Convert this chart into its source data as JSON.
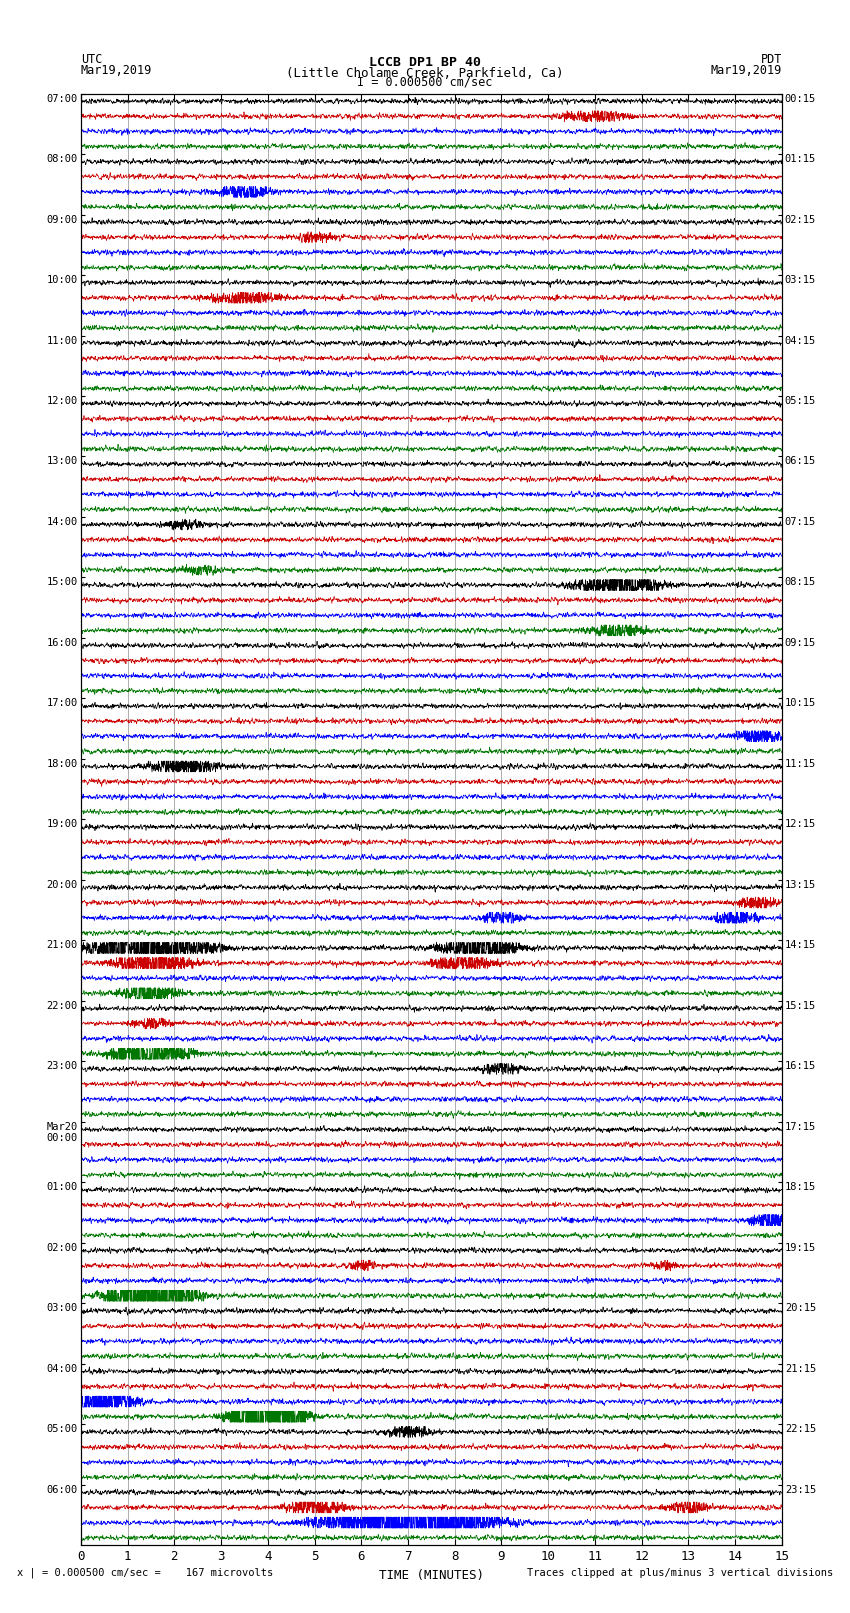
{
  "title_line1": "LCCB DP1 BP 40",
  "title_line2": "(Little Cholame Creek, Parkfield, Ca)",
  "scale_text": "I = 0.000500 cm/sec",
  "left_header": "UTC",
  "left_subheader": "Mar19,2019",
  "right_header": "PDT",
  "right_subheader": "Mar19,2019",
  "bottom_label": "TIME (MINUTES)",
  "bottom_note_left": "x | = 0.000500 cm/sec =    167 microvolts",
  "bottom_note_right": "Traces clipped at plus/minus 3 vertical divisions",
  "xlim": [
    0,
    15
  ],
  "xticks": [
    0,
    1,
    2,
    3,
    4,
    5,
    6,
    7,
    8,
    9,
    10,
    11,
    12,
    13,
    14,
    15
  ],
  "bg_color": "#ffffff",
  "trace_colors": [
    "black",
    "#cc0000",
    "blue",
    "#007700"
  ],
  "grid_color": "#888888",
  "n_hour_groups": 24,
  "utc_labels": [
    "07:00",
    "08:00",
    "09:00",
    "10:00",
    "11:00",
    "12:00",
    "13:00",
    "14:00",
    "15:00",
    "16:00",
    "17:00",
    "18:00",
    "19:00",
    "20:00",
    "21:00",
    "22:00",
    "23:00",
    "Mar20\n00:00",
    "01:00",
    "02:00",
    "03:00",
    "04:00",
    "05:00",
    "06:00"
  ],
  "pdt_labels": [
    "00:15",
    "01:15",
    "02:15",
    "03:15",
    "04:15",
    "05:15",
    "06:15",
    "07:15",
    "08:15",
    "09:15",
    "10:15",
    "11:15",
    "12:15",
    "13:15",
    "14:15",
    "15:15",
    "16:15",
    "17:15",
    "18:15",
    "19:15",
    "20:15",
    "21:15",
    "22:15",
    "23:15"
  ]
}
